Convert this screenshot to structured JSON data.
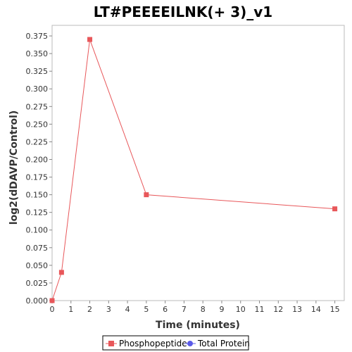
{
  "chart_data": {
    "type": "line",
    "title": "LT#PEEEEILNK(+ 3)_v1",
    "xlabel": "Time (minutes)",
    "ylabel": "log2(dDAVP/Control)",
    "xlim": [
      0,
      15.5
    ],
    "ylim": [
      0,
      0.39
    ],
    "xticks": [
      "0",
      "1",
      "2",
      "3",
      "4",
      "5",
      "6",
      "7",
      "8",
      "9",
      "10",
      "11",
      "12",
      "13",
      "14",
      "15"
    ],
    "yticks": [
      "0.000",
      "0.025",
      "0.050",
      "0.075",
      "0.100",
      "0.125",
      "0.150",
      "0.175",
      "0.200",
      "0.225",
      "0.250",
      "0.275",
      "0.300",
      "0.325",
      "0.350",
      "0.375"
    ],
    "grid": false,
    "legend_position": "bottom",
    "series": [
      {
        "name": "Phosphopeptide",
        "color": "#e8575a",
        "marker": "square",
        "x": [
          0,
          0.5,
          2,
          5,
          15
        ],
        "y": [
          0.0,
          0.04,
          0.37,
          0.15,
          0.13
        ]
      },
      {
        "name": "Total Protein",
        "color": "#5a5ae8",
        "marker": "circle",
        "x": [],
        "y": []
      }
    ]
  }
}
